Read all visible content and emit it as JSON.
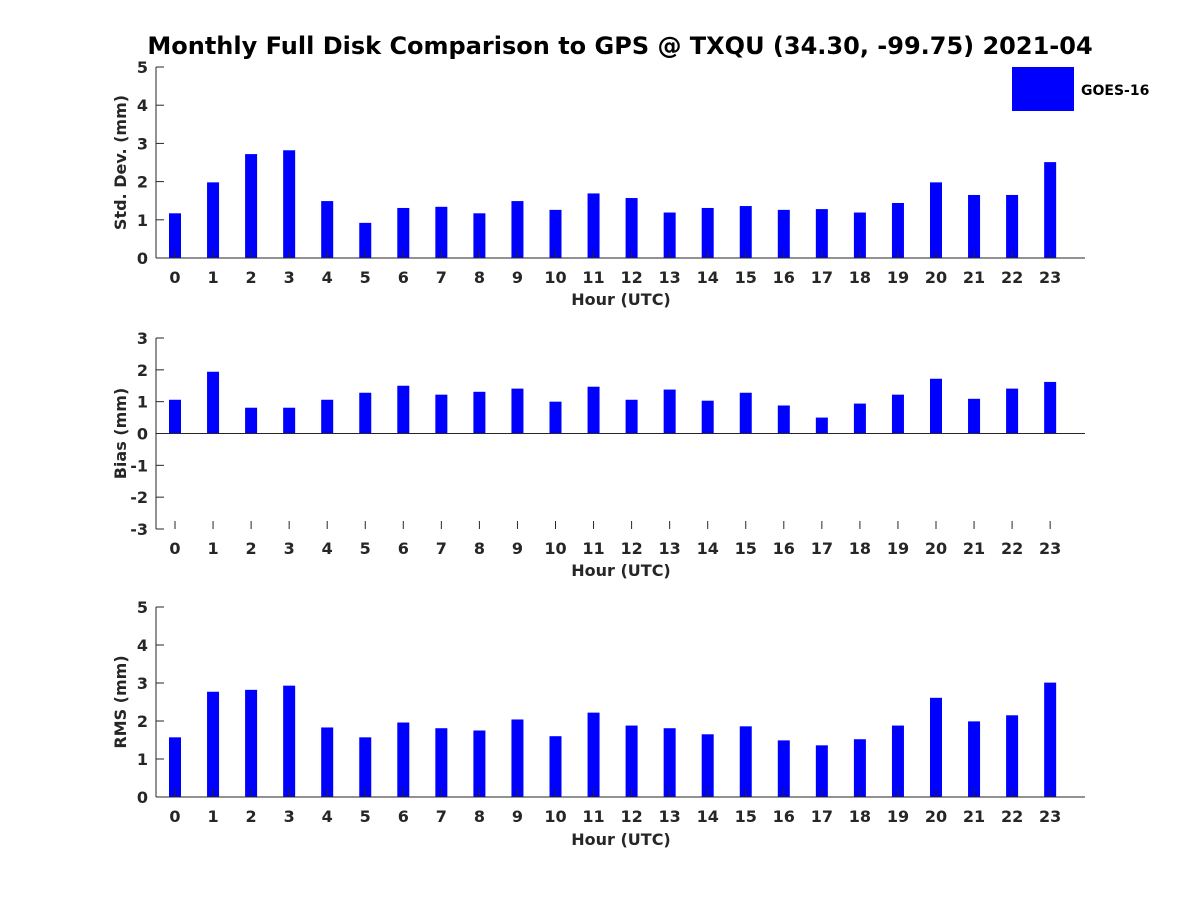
{
  "chart_data": {
    "title": "Monthly Full Disk Comparison to GPS @ TXQU (34.30, -99.75) 2021-04",
    "legend": {
      "placement": "top-right",
      "entries": [
        "GOES-16"
      ]
    },
    "colors": {
      "bar": "#0000ff",
      "axis": "#262626",
      "text": "#262626"
    },
    "panels": [
      {
        "type": "bar",
        "xlabel": "Hour (UTC)",
        "ylabel": "Std. Dev. (mm)",
        "ylim": [
          0,
          5
        ],
        "yticks": [
          "0",
          "1",
          "2",
          "3",
          "4",
          "5"
        ],
        "categories": [
          "0",
          "1",
          "2",
          "3",
          "4",
          "5",
          "6",
          "7",
          "8",
          "9",
          "10",
          "11",
          "12",
          "13",
          "14",
          "15",
          "16",
          "17",
          "18",
          "19",
          "20",
          "21",
          "22",
          "23"
        ],
        "series": [
          {
            "name": "GOES-16",
            "values": [
              1.17,
              1.98,
              2.72,
              2.82,
              1.49,
              0.92,
              1.31,
              1.34,
              1.17,
              1.49,
              1.26,
              1.69,
              1.57,
              1.19,
              1.31,
              1.36,
              1.26,
              1.28,
              1.19,
              1.44,
              1.98,
              1.65,
              1.65,
              2.51
            ]
          }
        ]
      },
      {
        "type": "bar",
        "xlabel": "Hour (UTC)",
        "ylabel": "Bias (mm)",
        "ylim": [
          -3,
          3
        ],
        "yticks": [
          "-3",
          "-2",
          "-1",
          "0",
          "1",
          "2",
          "3"
        ],
        "categories": [
          "0",
          "1",
          "2",
          "3",
          "4",
          "5",
          "6",
          "7",
          "8",
          "9",
          "10",
          "11",
          "12",
          "13",
          "14",
          "15",
          "16",
          "17",
          "18",
          "19",
          "20",
          "21",
          "22",
          "23"
        ],
        "series": [
          {
            "name": "GOES-16",
            "values": [
              1.06,
              1.94,
              0.81,
              0.81,
              1.06,
              1.28,
              1.5,
              1.22,
              1.31,
              1.41,
              1.0,
              1.47,
              1.06,
              1.38,
              1.03,
              1.28,
              0.88,
              0.5,
              0.94,
              1.22,
              1.72,
              1.09,
              1.41,
              1.62
            ]
          }
        ]
      },
      {
        "type": "bar",
        "xlabel": "Hour (UTC)",
        "ylabel": "RMS (mm)",
        "ylim": [
          0,
          5
        ],
        "yticks": [
          "0",
          "1",
          "2",
          "3",
          "4",
          "5"
        ],
        "categories": [
          "0",
          "1",
          "2",
          "3",
          "4",
          "5",
          "6",
          "7",
          "8",
          "9",
          "10",
          "11",
          "12",
          "13",
          "14",
          "15",
          "16",
          "17",
          "18",
          "19",
          "20",
          "21",
          "22",
          "23"
        ],
        "series": [
          {
            "name": "GOES-16",
            "values": [
              1.57,
              2.77,
              2.82,
              2.93,
              1.83,
              1.57,
              1.96,
              1.81,
              1.75,
              2.04,
              1.6,
              2.22,
              1.88,
              1.81,
              1.65,
              1.86,
              1.49,
              1.36,
              1.52,
              1.88,
              2.61,
              1.99,
              2.15,
              3.01
            ]
          }
        ]
      }
    ]
  }
}
